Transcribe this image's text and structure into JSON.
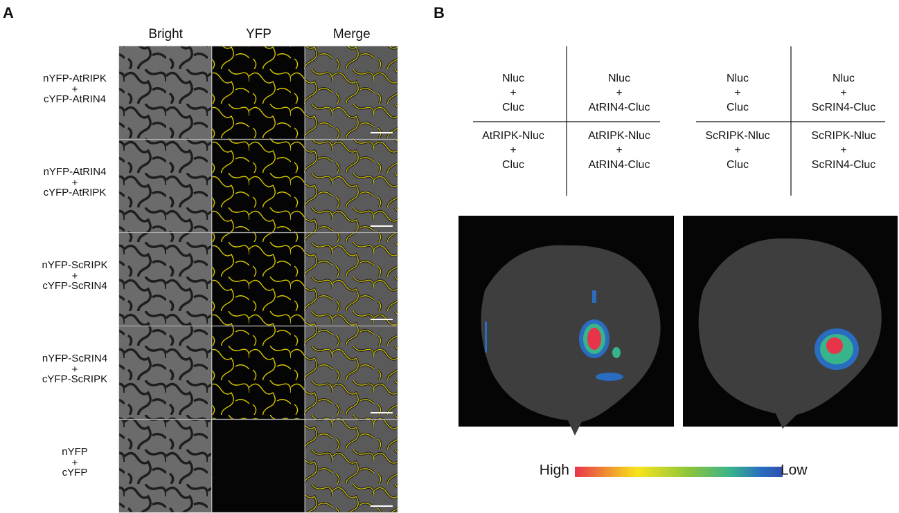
{
  "panel_a": {
    "label": "A",
    "columns": [
      "Bright",
      "YFP",
      "Merge"
    ],
    "rows": [
      [
        "nYFP-AtRIPK",
        "+",
        "cYFP-AtRIN4"
      ],
      [
        "nYFP-AtRIN4",
        "+",
        "cYFP-AtRIPK"
      ],
      [
        "nYFP-ScRIPK",
        "+",
        "cYFP-ScRIN4"
      ],
      [
        "nYFP-ScRIN4",
        "+",
        "cYFP-ScRIPK"
      ],
      [
        "nYFP",
        "+",
        "cYFP"
      ]
    ]
  },
  "panel_b": {
    "label": "B",
    "grids": [
      {
        "cells": [
          [
            "Nluc",
            "+",
            "Cluc"
          ],
          [
            "Nluc",
            "+",
            "AtRIN4-Cluc"
          ],
          [
            "AtRIPK-Nluc",
            "+",
            "Cluc"
          ],
          [
            "AtRIPK-Nluc",
            "+",
            "AtRIN4-Cluc"
          ]
        ]
      },
      {
        "cells": [
          [
            "Nluc",
            "+",
            "Cluc"
          ],
          [
            "Nluc",
            "+",
            "ScRIN4-Cluc"
          ],
          [
            "ScRIPK-Nluc",
            "+",
            "Cluc"
          ],
          [
            "ScRIPK-Nluc",
            "+",
            "ScRIN4-Cluc"
          ]
        ]
      }
    ],
    "colorbar": {
      "high": "High",
      "low": "Low"
    }
  }
}
